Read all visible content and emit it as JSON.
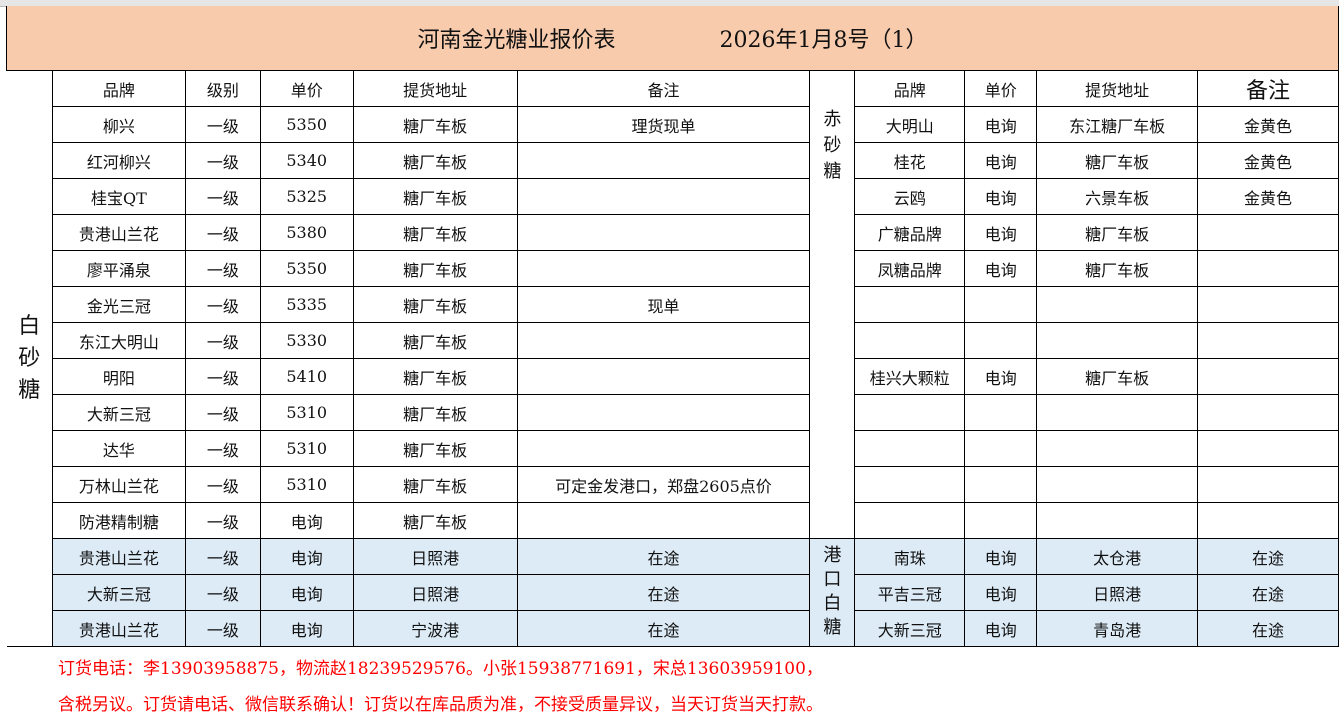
{
  "title": {
    "name": "河南金光糖业报价表",
    "date": "2026年1月8号（1）"
  },
  "sections": {
    "white_sugar": "白砂糖",
    "red_sugar": "赤砂糖",
    "port_white_sugar": "港口白糖"
  },
  "headers_left": [
    "品牌",
    "级别",
    "单价",
    "提货地址",
    "备注"
  ],
  "headers_right": [
    "品牌",
    "单价",
    "提货地址",
    "备注"
  ],
  "rows": [
    {
      "left": [
        "柳兴",
        "一级",
        "5350",
        "糖厂车板",
        "理货现单"
      ],
      "right": [
        "大明山",
        "电询",
        "东江糖厂车板",
        "金黄色"
      ]
    },
    {
      "left": [
        "红河柳兴",
        "一级",
        "5340",
        "糖厂车板",
        ""
      ],
      "right": [
        "桂花",
        "电询",
        "糖厂车板",
        "金黄色"
      ]
    },
    {
      "left": [
        "桂宝QT",
        "一级",
        "5325",
        "糖厂车板",
        ""
      ],
      "right": [
        "云鸥",
        "电询",
        "六景车板",
        "金黄色"
      ]
    },
    {
      "left": [
        "贵港山兰花",
        "一级",
        "5380",
        "糖厂车板",
        ""
      ],
      "right": [
        "广糖品牌",
        "电询",
        "糖厂车板",
        ""
      ]
    },
    {
      "left": [
        "廖平涌泉",
        "一级",
        "5350",
        "糖厂车板",
        ""
      ],
      "right": [
        "凤糖品牌",
        "电询",
        "糖厂车板",
        ""
      ]
    },
    {
      "left": [
        "金光三冠",
        "一级",
        "5335",
        "糖厂车板",
        "现单"
      ],
      "right": [
        "",
        "",
        "",
        ""
      ]
    },
    {
      "left": [
        "东江大明山",
        "一级",
        "5330",
        "糖厂车板",
        ""
      ],
      "right": [
        "",
        "",
        "",
        ""
      ]
    },
    {
      "left": [
        "明阳",
        "一级",
        "5410",
        "糖厂车板",
        ""
      ],
      "right": [
        "桂兴大颗粒",
        "电询",
        "糖厂车板",
        ""
      ]
    },
    {
      "left": [
        "大新三冠",
        "一级",
        "5310",
        "糖厂车板",
        ""
      ],
      "right": [
        "",
        "",
        "",
        ""
      ]
    },
    {
      "left": [
        "达华",
        "一级",
        "5310",
        "糖厂车板",
        ""
      ],
      "right": [
        "",
        "",
        "",
        ""
      ]
    },
    {
      "left": [
        "万林山兰花",
        "一级",
        "5310",
        "糖厂车板",
        "可定金发港口，郑盘2605点价"
      ],
      "right": [
        "",
        "",
        "",
        ""
      ]
    },
    {
      "left": [
        "防港精制糖",
        "一级",
        "电询",
        "糖厂车板",
        ""
      ],
      "right": [
        "",
        "",
        "",
        ""
      ]
    }
  ],
  "port_rows": [
    {
      "left": [
        "贵港山兰花",
        "一级",
        "电询",
        "日照港",
        "在途"
      ],
      "right": [
        "南珠",
        "电询",
        "太仓港",
        "在途"
      ]
    },
    {
      "left": [
        "大新三冠",
        "一级",
        "电询",
        "日照港",
        "在途"
      ],
      "right": [
        "平吉三冠",
        "电询",
        "日照港",
        "在途"
      ]
    },
    {
      "left": [
        "贵港山兰花",
        "一级",
        "电询",
        "宁波港",
        "在途"
      ],
      "right": [
        "大新三冠",
        "电询",
        "青岛港",
        "在途"
      ]
    }
  ],
  "footer": {
    "line1": "订货电话：李13903958875，物流赵18239529576。小张15938771691，宋总13603959100，",
    "line2": "含税另议。订货请电话、微信联系确认！订货以在库品质为准，不接受质量异议，当天订货当天打款。"
  },
  "colors": {
    "title_bg": "#f8cbad",
    "port_row_bg": "#ddebf7",
    "footer_text": "#ff0000"
  }
}
